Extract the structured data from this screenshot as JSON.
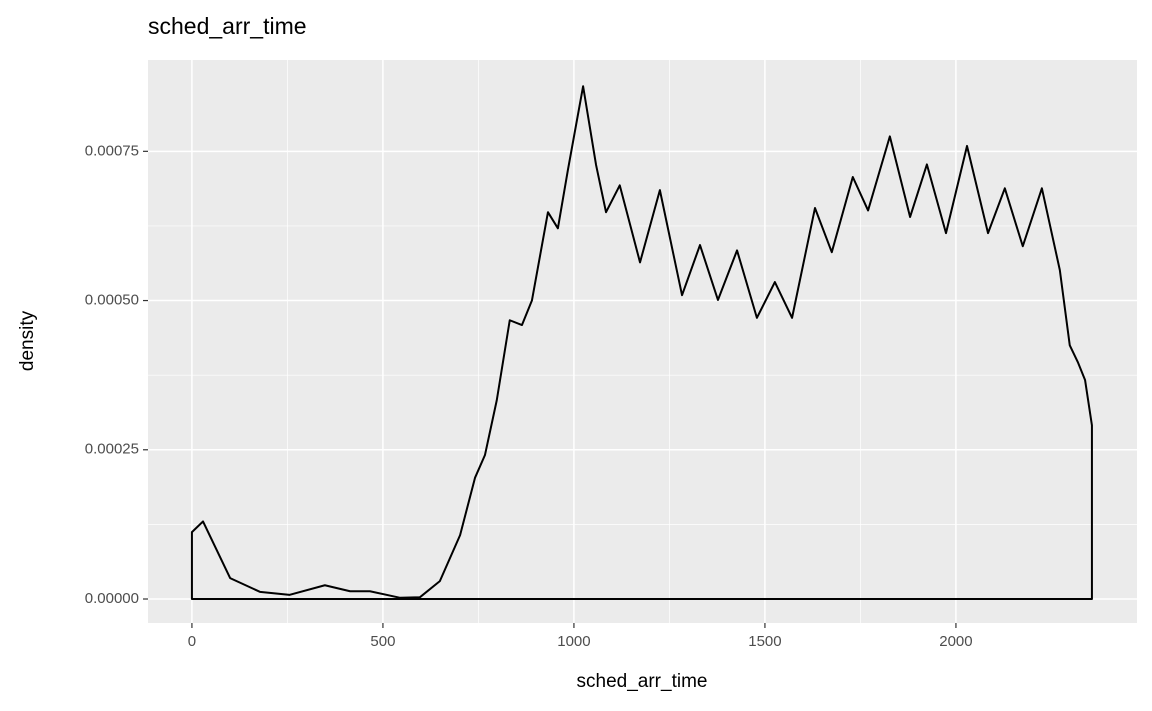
{
  "chart_data": {
    "type": "density",
    "title": "sched_arr_time",
    "x_label": "sched_arr_time",
    "y_label": "density",
    "x": [
      0,
      29,
      100,
      178,
      256,
      348,
      414,
      466,
      545,
      597,
      649,
      702,
      741,
      767,
      798,
      832,
      864,
      890,
      932,
      958,
      984,
      1024,
      1058,
      1084,
      1120,
      1173,
      1225,
      1283,
      1330,
      1377,
      1427,
      1479,
      1526,
      1571,
      1631,
      1675,
      1730,
      1770,
      1827,
      1880,
      1924,
      1974,
      2029,
      2084,
      2128,
      2175,
      2225,
      2272,
      2298,
      2319,
      2338,
      2356
    ],
    "values": [
      0.000112,
      0.00013,
      3.5e-05,
      1.2e-05,
      7e-06,
      2.3e-05,
      1.3e-05,
      1.3e-05,
      2e-06,
      3e-06,
      3e-05,
      0.000107,
      0.000203,
      0.000241,
      0.000333,
      0.000467,
      0.000459,
      0.0005,
      0.000648,
      0.000621,
      0.000718,
      0.000859,
      0.000727,
      0.000648,
      0.000693,
      0.000564,
      0.000685,
      0.000509,
      0.000593,
      0.000501,
      0.000584,
      0.000471,
      0.000531,
      0.000471,
      0.000655,
      0.000581,
      0.000707,
      0.000651,
      0.000775,
      0.00064,
      0.000728,
      0.000613,
      0.000759,
      0.000613,
      0.000688,
      0.000591,
      0.000688,
      0.000551,
      0.000425,
      0.000397,
      0.000367,
      0.000291
    ],
    "color": "#000000",
    "xlim": [
      -115,
      2474
    ],
    "xticks": [
      0,
      500,
      1000,
      1500,
      2000
    ],
    "ylim": [
      -4.02e-05,
      0.000903
    ],
    "yticks": [
      {
        "value": 0,
        "label": "0.00000"
      },
      {
        "value": 0.00025,
        "label": "0.00025"
      },
      {
        "value": 0.0005,
        "label": "0.00050"
      },
      {
        "value": 0.00075,
        "label": "0.00075"
      }
    ],
    "grid": true
  }
}
